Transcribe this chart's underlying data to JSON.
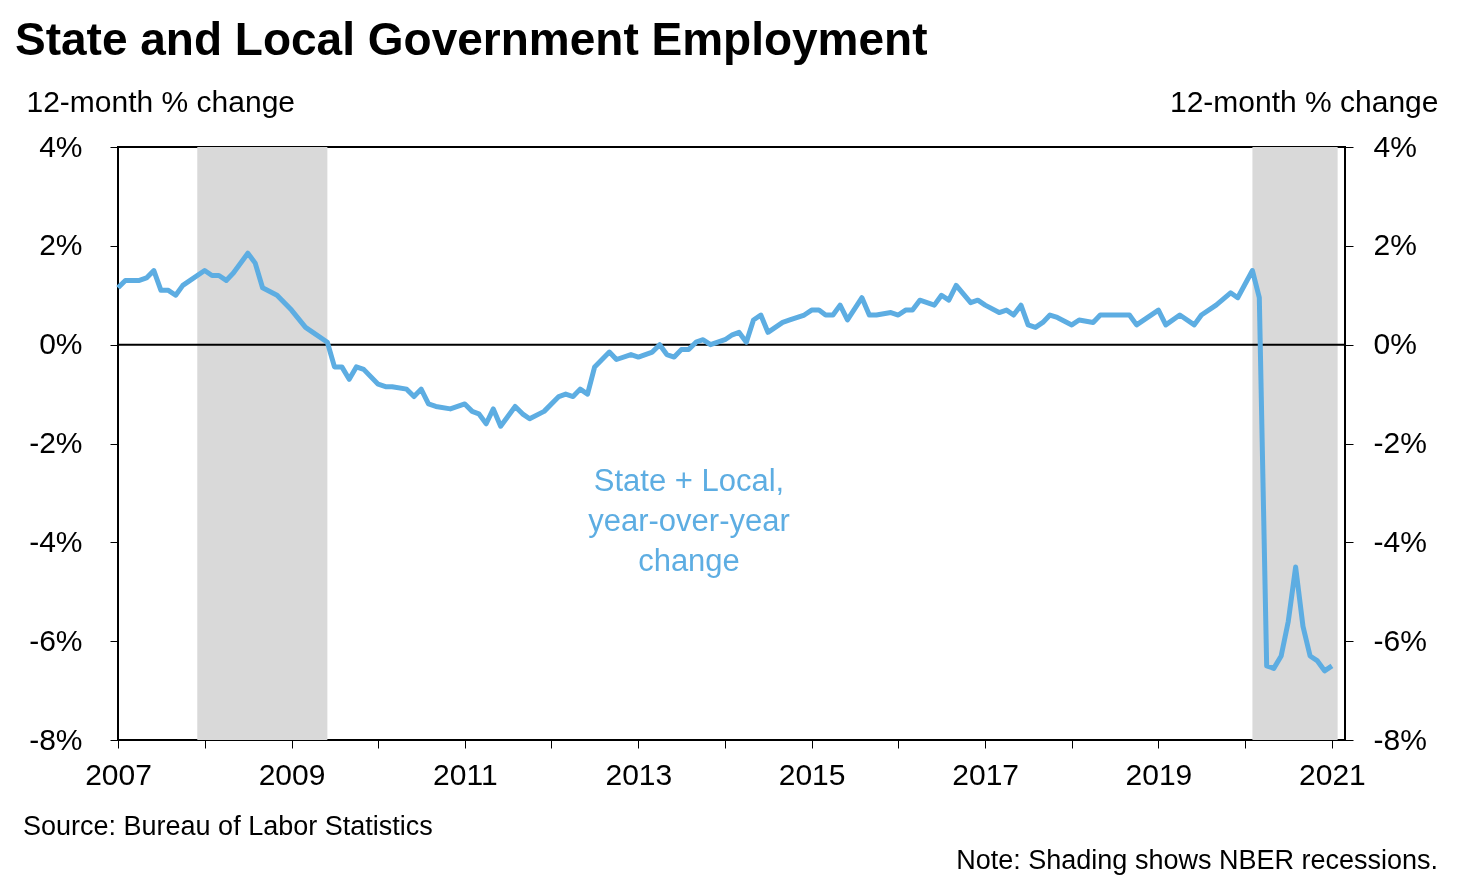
{
  "chart_data": {
    "type": "line",
    "title": "State and Local Government Employment",
    "ylabel": "12-month % change",
    "y2label": "12-month % change",
    "annotations": [
      "Source: Bureau of Labor Statistics",
      "Note: Shading shows NBER recessions."
    ],
    "x": [
      "2007-01",
      "2007-02",
      "2007-04",
      "2007-05",
      "2007-06",
      "2007-07",
      "2007-08",
      "2007-09",
      "2007-10",
      "2007-11",
      "2008-01",
      "2008-02",
      "2008-03",
      "2008-04",
      "2008-05",
      "2008-07",
      "2008-08",
      "2008-09",
      "2008-11",
      "2009-01",
      "2009-03",
      "2009-04",
      "2009-06",
      "2009-07",
      "2009-08",
      "2009-09",
      "2009-10",
      "2009-11",
      "2010-01",
      "2010-02",
      "2010-03",
      "2010-05",
      "2010-06",
      "2010-07",
      "2010-08",
      "2010-09",
      "2010-11",
      "2011-01",
      "2011-02",
      "2011-03",
      "2011-04",
      "2011-05",
      "2011-06",
      "2011-08",
      "2011-09",
      "2011-10",
      "2011-12",
      "2012-02",
      "2012-03",
      "2012-04",
      "2012-05",
      "2012-06",
      "2012-07",
      "2012-08",
      "2012-09",
      "2012-10",
      "2012-12",
      "2013-01",
      "2013-03",
      "2013-04",
      "2013-05",
      "2013-06",
      "2013-07",
      "2013-08",
      "2013-09",
      "2013-10",
      "2013-11",
      "2014-01",
      "2014-02",
      "2014-03",
      "2014-04",
      "2014-05",
      "2014-06",
      "2014-07",
      "2014-09",
      "2014-10",
      "2014-12",
      "2015-01",
      "2015-02",
      "2015-03",
      "2015-04",
      "2015-05",
      "2015-06",
      "2015-08",
      "2015-09",
      "2015-10",
      "2015-12",
      "2016-01",
      "2016-02",
      "2016-03",
      "2016-04",
      "2016-06",
      "2016-07",
      "2016-08",
      "2016-09",
      "2016-11",
      "2016-12",
      "2017-01",
      "2017-03",
      "2017-04",
      "2017-05",
      "2017-06",
      "2017-07",
      "2017-08",
      "2017-09",
      "2017-10",
      "2017-11",
      "2018-01",
      "2018-02",
      "2018-04",
      "2018-05",
      "2018-06",
      "2018-08",
      "2018-09",
      "2018-10",
      "2019-01",
      "2019-02",
      "2019-04",
      "2019-06",
      "2019-07",
      "2019-09",
      "2019-11",
      "2019-12",
      "2020-02",
      "2020-03",
      "2020-04",
      "2020-05",
      "2020-06",
      "2020-07",
      "2020-08",
      "2020-09",
      "2020-10",
      "2020-11",
      "2020-12",
      "2021-01"
    ],
    "series": [
      {
        "name": "State + Local, year-over-year change",
        "color": "#5dade2",
        "values": [
          1.15,
          1.3,
          1.3,
          1.35,
          1.5,
          1.1,
          1.1,
          1.0,
          1.2,
          1.3,
          1.5,
          1.4,
          1.4,
          1.3,
          1.45,
          1.85,
          1.65,
          1.15,
          1.0,
          0.7,
          0.35,
          0.25,
          0.05,
          -0.45,
          -0.45,
          -0.7,
          -0.45,
          -0.5,
          -0.8,
          -0.85,
          -0.85,
          -0.9,
          -1.05,
          -0.9,
          -1.2,
          -1.25,
          -1.3,
          -1.2,
          -1.35,
          -1.4,
          -1.6,
          -1.3,
          -1.65,
          -1.25,
          -1.4,
          -1.5,
          -1.35,
          -1.05,
          -1.0,
          -1.05,
          -0.9,
          -1.0,
          -0.45,
          -0.3,
          -0.15,
          -0.3,
          -0.2,
          -0.25,
          -0.15,
          0.0,
          -0.2,
          -0.25,
          -0.1,
          -0.1,
          0.05,
          0.1,
          0.0,
          0.1,
          0.2,
          0.25,
          0.05,
          0.5,
          0.6,
          0.25,
          0.45,
          0.5,
          0.6,
          0.7,
          0.7,
          0.6,
          0.6,
          0.8,
          0.5,
          0.95,
          0.6,
          0.6,
          0.65,
          0.6,
          0.7,
          0.7,
          0.9,
          0.8,
          1.0,
          0.9,
          1.2,
          0.85,
          0.9,
          0.8,
          0.65,
          0.7,
          0.6,
          0.8,
          0.4,
          0.35,
          0.45,
          0.6,
          0.55,
          0.4,
          0.5,
          0.45,
          0.6,
          0.6,
          0.6,
          0.6,
          0.4,
          0.7,
          0.4,
          0.6,
          0.4,
          0.6,
          0.8,
          1.05,
          0.95,
          1.5,
          0.95,
          -6.5,
          -6.55,
          -6.3,
          -5.6,
          -4.5,
          -5.7,
          -6.3,
          -6.4,
          -6.6,
          -6.5
        ]
      }
    ],
    "xlim": [
      "2007-01-01",
      "2021-02-25"
    ],
    "xticks": [
      "2007",
      {
        "value": "2008",
        "label": null
      },
      "2009",
      {
        "value": "2010",
        "label": null
      },
      "2011",
      {
        "value": "2012",
        "label": null
      },
      "2013",
      {
        "value": "2014",
        "label": null
      },
      "2015",
      {
        "value": "2016",
        "label": null
      },
      "2017",
      {
        "value": "2018",
        "label": null
      },
      "2019",
      {
        "value": "2020",
        "label": null
      },
      "2021"
    ],
    "ylim": [
      -8,
      4
    ],
    "yticks": [
      {
        "value": -8,
        "label": "-8%"
      },
      {
        "value": -6,
        "label": "-6%"
      },
      {
        "value": -4,
        "label": "-4%"
      },
      {
        "value": -2,
        "label": "-2%"
      },
      {
        "value": 0,
        "label": "0%"
      },
      {
        "value": 2,
        "label": "2%"
      },
      {
        "value": 4,
        "label": "4%"
      }
    ],
    "y2lim": [
      -8,
      4
    ],
    "y2ticks": [
      {
        "value": -8,
        "label": "-8%"
      },
      {
        "value": -6,
        "label": "-6%"
      },
      {
        "value": -4,
        "label": "-4%"
      },
      {
        "value": -2,
        "label": "-2%"
      },
      {
        "value": 0,
        "label": "0%"
      },
      {
        "value": 2,
        "label": "2%"
      },
      {
        "value": 4,
        "label": "4%"
      }
    ],
    "ref_lines": [
      {
        "axis": "y",
        "value": 0,
        "label": null,
        "color": "#000000"
      }
    ],
    "bands": [
      {
        "axis": "x",
        "from": "2007-12",
        "to": "2009-06",
        "label": null,
        "color": "#d9d9d9"
      },
      {
        "axis": "x",
        "from": "2020-02",
        "to": "2021-01-25",
        "label": null,
        "color": "#d9d9d9"
      }
    ],
    "legend": false,
    "grid": false
  }
}
